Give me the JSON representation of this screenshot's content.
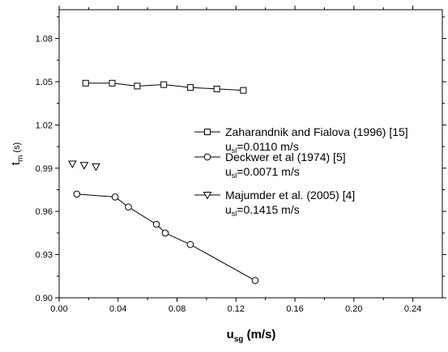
{
  "chart_data": {
    "type": "line",
    "xlabel": "u",
    "xlabel_sub": "sg",
    "xlabel_unit": " (m/s)",
    "ylabel": "t",
    "ylabel_sub": "m",
    "ylabel_unit": " (s)",
    "xlim": [
      0.0,
      0.26
    ],
    "ylim": [
      0.9,
      1.1
    ],
    "x_ticks": [
      "0.00",
      "0.04",
      "0.08",
      "0.12",
      "0.16",
      "0.20",
      "0.24"
    ],
    "y_ticks": [
      "0.90",
      "0.93",
      "0.96",
      "0.99",
      "1.02",
      "1.05",
      "1.08"
    ],
    "legend_position": "center-right",
    "series": [
      {
        "name": "Zaharandnik and Fialova (1996) [15]",
        "sub_prefix": "u",
        "sub_sub": "sl",
        "sub_value": "=0.0110 m/s",
        "marker": "square",
        "line": true,
        "x": [
          0.018,
          0.036,
          0.053,
          0.071,
          0.089,
          0.107,
          0.125
        ],
        "y": [
          1.049,
          1.049,
          1.047,
          1.048,
          1.046,
          1.045,
          1.044
        ]
      },
      {
        "name": "Deckwer et al (1974) [5]",
        "sub_prefix": "u",
        "sub_sub": "sl",
        "sub_value": "=0.0071 m/s",
        "marker": "circle",
        "line": true,
        "x": [
          0.012,
          0.038,
          0.047,
          0.066,
          0.072,
          0.089,
          0.133
        ],
        "y": [
          0.972,
          0.97,
          0.963,
          0.951,
          0.945,
          0.937,
          0.912
        ]
      },
      {
        "name": "Majumder et al. (2005) [4]",
        "sub_prefix": "u",
        "sub_sub": "sl",
        "sub_value": "=0.1415 m/s",
        "marker": "triangle-down",
        "line": false,
        "x": [
          0.009,
          0.017,
          0.025
        ],
        "y": [
          0.993,
          0.992,
          0.991
        ]
      }
    ]
  }
}
